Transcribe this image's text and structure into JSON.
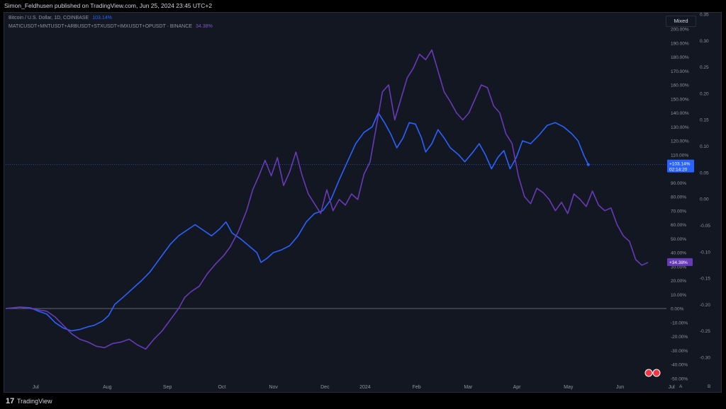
{
  "header": {
    "published": "Simon_Feldhusen published on TradingView.com, Jun 25, 2024 23:45 UTC+2"
  },
  "footer": {
    "logo": "17",
    "brand": "TradingView"
  },
  "controls": {
    "scale_mode": "Mixed",
    "btn_a": "A",
    "btn_b": "B"
  },
  "colors": {
    "background": "#131722",
    "btc": "#2962ff",
    "basket": "#673ab7",
    "text": "#8e93a0"
  },
  "chart_data": {
    "type": "line",
    "x_ticks": [
      "Jul",
      "Aug",
      "Sep",
      "Oct",
      "Nov",
      "Dec",
      "2024",
      "Feb",
      "Mar",
      "Apr",
      "May",
      "Jun",
      "Jul"
    ],
    "percent_axis": {
      "ylim": [
        -50,
        200
      ],
      "ticks": [
        "200.00%",
        "190.00%",
        "180.00%",
        "170.00%",
        "160.00%",
        "150.00%",
        "140.00%",
        "130.00%",
        "120.00%",
        "110.00%",
        "100.00%",
        "90.00%",
        "80.00%",
        "70.00%",
        "60.00%",
        "50.00%",
        "40.00%",
        "30.00%",
        "20.00%",
        "10.00%",
        "0.00%",
        "-10.00%",
        "-20.00%",
        "-30.00%",
        "-40.00%",
        "-50.00%"
      ]
    },
    "right_axis": {
      "ylim": [
        -0.3,
        0.35
      ],
      "ticks": [
        "0.35",
        "0.30",
        "0.25",
        "0.20",
        "0.15",
        "0.10",
        "0.05",
        "0.00",
        "-0.05",
        "-0.10",
        "-0.15",
        "-0.20",
        "-0.25",
        "-0.30"
      ]
    },
    "series": [
      {
        "name": "Bitcoin / U.S. Dollar, 1D, COINBASE",
        "last_label": "103.14%",
        "badge": "+103.14%",
        "countdown": "02:14:20",
        "color": "#2962ff",
        "points": [
          [
            0,
            0
          ],
          [
            0.7,
            1
          ],
          [
            1.2,
            0.5
          ],
          [
            1.6,
            -2
          ],
          [
            2.0,
            -4
          ],
          [
            2.4,
            -10
          ],
          [
            2.8,
            -14
          ],
          [
            3.2,
            -16
          ],
          [
            3.6,
            -15
          ],
          [
            4.0,
            -13
          ],
          [
            4.3,
            -12
          ],
          [
            4.7,
            -9
          ],
          [
            5.0,
            -5
          ],
          [
            5.3,
            3
          ],
          [
            5.7,
            8
          ],
          [
            6.0,
            12
          ],
          [
            6.3,
            16
          ],
          [
            6.6,
            20
          ],
          [
            7.0,
            26
          ],
          [
            7.3,
            32
          ],
          [
            7.6,
            38
          ],
          [
            8.0,
            46
          ],
          [
            8.4,
            52
          ],
          [
            8.8,
            56
          ],
          [
            9.2,
            60
          ],
          [
            9.6,
            56
          ],
          [
            10.0,
            52
          ],
          [
            10.4,
            57
          ],
          [
            10.7,
            62
          ],
          [
            11.0,
            54
          ],
          [
            11.4,
            50
          ],
          [
            11.8,
            45
          ],
          [
            12.2,
            40
          ],
          [
            12.4,
            33
          ],
          [
            12.7,
            36
          ],
          [
            13.0,
            40
          ],
          [
            13.4,
            42
          ],
          [
            13.8,
            45
          ],
          [
            14.2,
            52
          ],
          [
            14.6,
            62
          ],
          [
            15.0,
            68
          ],
          [
            15.4,
            70
          ],
          [
            15.8,
            78
          ],
          [
            16.2,
            92
          ],
          [
            16.6,
            105
          ],
          [
            17.0,
            118
          ],
          [
            17.4,
            126
          ],
          [
            17.8,
            130
          ],
          [
            18.1,
            140
          ],
          [
            18.4,
            133
          ],
          [
            18.7,
            125
          ],
          [
            19.0,
            115
          ],
          [
            19.3,
            122
          ],
          [
            19.6,
            133
          ],
          [
            19.9,
            132
          ],
          [
            20.2,
            122
          ],
          [
            20.4,
            112
          ],
          [
            20.7,
            118
          ],
          [
            21.0,
            128
          ],
          [
            21.3,
            122
          ],
          [
            21.6,
            115
          ],
          [
            22.0,
            110
          ],
          [
            22.3,
            105
          ],
          [
            22.7,
            112
          ],
          [
            23.0,
            118
          ],
          [
            23.3,
            110
          ],
          [
            23.6,
            100
          ],
          [
            23.9,
            108
          ],
          [
            24.2,
            113
          ],
          [
            24.5,
            100
          ],
          [
            24.8,
            108
          ],
          [
            25.1,
            120
          ],
          [
            25.5,
            118
          ],
          [
            25.9,
            124
          ],
          [
            26.3,
            131
          ],
          [
            26.7,
            133
          ],
          [
            27.1,
            130
          ],
          [
            27.5,
            125
          ],
          [
            27.8,
            120
          ],
          [
            28.1,
            109
          ],
          [
            28.3,
            103
          ]
        ]
      },
      {
        "name": "MATICUSDT+MNTUSDT+ARBUSDT+STXUSDT+IMXUSDT+OPUSDT · BINANCE",
        "last_label": "34.38%",
        "badge": "+34.38%",
        "color": "#673ab7",
        "points": [
          [
            0,
            0
          ],
          [
            0.7,
            1
          ],
          [
            1.2,
            0
          ],
          [
            1.6,
            -1
          ],
          [
            2.0,
            -2
          ],
          [
            2.4,
            -6
          ],
          [
            2.8,
            -12
          ],
          [
            3.2,
            -18
          ],
          [
            3.6,
            -22
          ],
          [
            4.0,
            -24
          ],
          [
            4.4,
            -27
          ],
          [
            4.8,
            -28
          ],
          [
            5.2,
            -25
          ],
          [
            5.6,
            -24
          ],
          [
            6.0,
            -22
          ],
          [
            6.4,
            -26
          ],
          [
            6.8,
            -29
          ],
          [
            7.2,
            -22
          ],
          [
            7.6,
            -16
          ],
          [
            8.0,
            -8
          ],
          [
            8.4,
            0
          ],
          [
            8.7,
            8
          ],
          [
            9.0,
            12
          ],
          [
            9.4,
            16
          ],
          [
            9.8,
            25
          ],
          [
            10.2,
            32
          ],
          [
            10.6,
            38
          ],
          [
            10.9,
            44
          ],
          [
            11.3,
            55
          ],
          [
            11.7,
            70
          ],
          [
            12.0,
            85
          ],
          [
            12.3,
            95
          ],
          [
            12.6,
            106
          ],
          [
            12.9,
            95
          ],
          [
            13.2,
            108
          ],
          [
            13.5,
            88
          ],
          [
            13.8,
            98
          ],
          [
            14.1,
            112
          ],
          [
            14.4,
            95
          ],
          [
            14.7,
            82
          ],
          [
            15.0,
            75
          ],
          [
            15.3,
            68
          ],
          [
            15.6,
            85
          ],
          [
            15.9,
            70
          ],
          [
            16.2,
            78
          ],
          [
            16.5,
            74
          ],
          [
            16.8,
            82
          ],
          [
            17.1,
            78
          ],
          [
            17.4,
            96
          ],
          [
            17.7,
            105
          ],
          [
            18.0,
            130
          ],
          [
            18.3,
            155
          ],
          [
            18.6,
            160
          ],
          [
            18.9,
            135
          ],
          [
            19.2,
            150
          ],
          [
            19.5,
            165
          ],
          [
            19.8,
            172
          ],
          [
            20.1,
            182
          ],
          [
            20.4,
            178
          ],
          [
            20.7,
            185
          ],
          [
            21.0,
            170
          ],
          [
            21.3,
            155
          ],
          [
            21.6,
            148
          ],
          [
            21.9,
            140
          ],
          [
            22.2,
            135
          ],
          [
            22.5,
            140
          ],
          [
            22.8,
            150
          ],
          [
            23.1,
            160
          ],
          [
            23.4,
            158
          ],
          [
            23.7,
            145
          ],
          [
            24.0,
            140
          ],
          [
            24.3,
            125
          ],
          [
            24.6,
            118
          ],
          [
            24.9,
            95
          ],
          [
            25.2,
            80
          ],
          [
            25.5,
            75
          ],
          [
            25.8,
            86
          ],
          [
            26.1,
            83
          ],
          [
            26.4,
            78
          ],
          [
            26.7,
            70
          ],
          [
            27.0,
            76
          ],
          [
            27.3,
            68
          ],
          [
            27.6,
            82
          ],
          [
            27.9,
            78
          ],
          [
            28.2,
            73
          ],
          [
            28.5,
            84
          ],
          [
            28.8,
            74
          ],
          [
            29.1,
            70
          ],
          [
            29.4,
            72
          ],
          [
            29.7,
            60
          ],
          [
            30.0,
            52
          ],
          [
            30.3,
            48
          ],
          [
            30.6,
            35
          ],
          [
            30.9,
            31
          ],
          [
            31.2,
            33
          ]
        ]
      }
    ]
  }
}
